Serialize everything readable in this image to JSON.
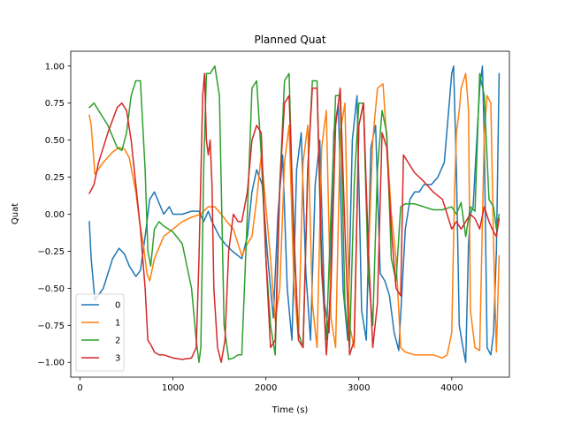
{
  "chart_data": {
    "type": "line",
    "title": "Planned Quat",
    "xlabel": "Time (s)",
    "ylabel": "Quat",
    "xlim": [
      -100,
      4620
    ],
    "ylim": [
      -1.1,
      1.1
    ],
    "xticks": [
      0,
      1000,
      2000,
      3000,
      4000
    ],
    "xtick_labels": [
      "0",
      "1000",
      "2000",
      "3000",
      "4000"
    ],
    "yticks": [
      -1.0,
      -0.75,
      -0.5,
      -0.25,
      0.0,
      0.25,
      0.5,
      0.75,
      1.0
    ],
    "ytick_labels": [
      "−1.00",
      "−0.75",
      "−0.50",
      "−0.25",
      "0.00",
      "0.25",
      "0.50",
      "0.75",
      "1.00"
    ],
    "grid": false,
    "legend_position": "lower-left",
    "series": [
      {
        "name": "0",
        "color": "#1f77b4",
        "x": [
          100,
          120,
          160,
          250,
          350,
          420,
          480,
          530,
          600,
          650,
          700,
          750,
          800,
          900,
          960,
          1000,
          1100,
          1200,
          1280,
          1330,
          1380,
          1420,
          1500,
          1560,
          1640,
          1740,
          1800,
          1850,
          1900,
          1960,
          2020,
          2080,
          2130,
          2180,
          2230,
          2280,
          2330,
          2380,
          2430,
          2480,
          2530,
          2580,
          2630,
          2680,
          2730,
          2780,
          2830,
          2880,
          2930,
          2980,
          3030,
          3080,
          3130,
          3180,
          3230,
          3280,
          3330,
          3380,
          3430,
          3500,
          3550,
          3600,
          3650,
          3700,
          3780,
          3850,
          3920,
          4000,
          4020,
          4050,
          4080,
          4120,
          4150,
          4180,
          4200,
          4230,
          4260,
          4300,
          4330,
          4350,
          4380,
          4420,
          4450,
          4480,
          4510
        ],
        "y": [
          -0.05,
          -0.3,
          -0.58,
          -0.5,
          -0.3,
          -0.23,
          -0.27,
          -0.35,
          -0.42,
          -0.38,
          -0.15,
          0.1,
          0.15,
          0.0,
          0.05,
          0.0,
          0.0,
          0.02,
          0.02,
          -0.05,
          0.02,
          -0.05,
          -0.15,
          -0.2,
          -0.25,
          -0.3,
          -0.15,
          0.15,
          0.3,
          0.2,
          -0.3,
          -0.7,
          0.0,
          0.4,
          -0.5,
          -0.85,
          0.3,
          0.55,
          -0.4,
          -0.85,
          0.2,
          0.5,
          -0.6,
          -0.8,
          0.55,
          0.75,
          -0.5,
          -0.85,
          0.5,
          0.8,
          -0.65,
          -0.85,
          0.45,
          0.6,
          -0.4,
          -0.45,
          -0.55,
          -0.8,
          -0.92,
          -0.1,
          0.1,
          0.15,
          0.15,
          0.2,
          0.2,
          0.25,
          0.35,
          0.95,
          1.0,
          0.3,
          -0.75,
          -0.9,
          -1.0,
          -0.2,
          0.0,
          0.05,
          0.4,
          0.85,
          1.0,
          0.5,
          -0.9,
          -0.95,
          -0.8,
          -0.25,
          0.95
        ]
      },
      {
        "name": "1",
        "color": "#ff7f0e",
        "x": [
          100,
          120,
          160,
          250,
          350,
          420,
          480,
          530,
          600,
          640,
          680,
          720,
          750,
          800,
          900,
          1000,
          1100,
          1200,
          1300,
          1330,
          1380,
          1450,
          1520,
          1580,
          1650,
          1740,
          1800,
          1850,
          1900,
          1950,
          2000,
          2050,
          2100,
          2150,
          2200,
          2250,
          2300,
          2350,
          2400,
          2450,
          2500,
          2550,
          2600,
          2650,
          2700,
          2750,
          2800,
          2850,
          2900,
          2950,
          3000,
          3050,
          3100,
          3150,
          3200,
          3260,
          3300,
          3350,
          3400,
          3450,
          3500,
          3600,
          3700,
          3800,
          3900,
          3950,
          4000,
          4030,
          4050,
          4080,
          4100,
          4150,
          4180,
          4200,
          4250,
          4300,
          4350,
          4380,
          4420,
          4450,
          4480,
          4510
        ],
        "y": [
          0.67,
          0.6,
          0.27,
          0.35,
          0.42,
          0.45,
          0.44,
          0.38,
          0.15,
          -0.05,
          -0.2,
          -0.4,
          -0.45,
          -0.3,
          -0.15,
          -0.1,
          -0.05,
          -0.02,
          0.0,
          0.02,
          0.05,
          0.05,
          0.0,
          -0.05,
          -0.1,
          -0.28,
          -0.2,
          -0.15,
          0.1,
          0.4,
          0.05,
          -0.3,
          -0.72,
          -0.5,
          0.35,
          0.6,
          -0.45,
          -0.85,
          0.35,
          0.6,
          -0.6,
          -0.9,
          0.45,
          0.7,
          -0.7,
          -0.9,
          0.55,
          0.75,
          -0.75,
          -0.9,
          0.6,
          0.75,
          -0.35,
          0.5,
          0.85,
          0.88,
          0.5,
          0.0,
          -0.3,
          -0.9,
          -0.93,
          -0.95,
          -0.95,
          -0.95,
          -0.97,
          -0.95,
          -0.8,
          0.15,
          0.55,
          0.7,
          0.85,
          0.95,
          0.7,
          -0.65,
          -0.9,
          -0.92,
          0.55,
          0.8,
          0.75,
          -0.2,
          -0.93,
          -0.28
        ]
      },
      {
        "name": "2",
        "color": "#2ca02c",
        "x": [
          100,
          150,
          200,
          300,
          400,
          450,
          500,
          550,
          600,
          650,
          700,
          730,
          760,
          800,
          850,
          900,
          1000,
          1100,
          1200,
          1250,
          1280,
          1300,
          1330,
          1360,
          1400,
          1450,
          1500,
          1550,
          1600,
          1650,
          1700,
          1740,
          1800,
          1850,
          1900,
          1950,
          2000,
          2050,
          2100,
          2150,
          2200,
          2250,
          2300,
          2350,
          2400,
          2450,
          2500,
          2550,
          2600,
          2650,
          2700,
          2750,
          2800,
          2850,
          2900,
          2950,
          3000,
          3050,
          3100,
          3150,
          3200,
          3250,
          3300,
          3350,
          3400,
          3450,
          3500,
          3600,
          3700,
          3800,
          3900,
          4000,
          4050,
          4100,
          4150,
          4200,
          4250,
          4300,
          4350,
          4400,
          4450,
          4480,
          4510
        ],
        "y": [
          0.72,
          0.75,
          0.7,
          0.6,
          0.45,
          0.43,
          0.55,
          0.8,
          0.9,
          0.9,
          0.3,
          -0.25,
          -0.35,
          -0.1,
          -0.05,
          -0.08,
          -0.12,
          -0.2,
          -0.5,
          -0.85,
          -1.0,
          -0.9,
          0.3,
          0.95,
          0.95,
          1.0,
          0.8,
          -0.75,
          -0.98,
          -0.97,
          -0.95,
          -0.95,
          0.0,
          0.85,
          0.9,
          0.4,
          -0.3,
          -0.75,
          -0.95,
          0.2,
          0.9,
          0.95,
          -0.2,
          -0.8,
          -0.9,
          0.3,
          0.9,
          0.9,
          -0.4,
          -0.85,
          0.0,
          0.8,
          0.8,
          -0.6,
          -0.9,
          0.2,
          0.75,
          0.75,
          -0.4,
          -0.75,
          0.3,
          0.7,
          0.55,
          -0.3,
          -0.45,
          0.05,
          0.07,
          0.07,
          0.05,
          0.03,
          0.03,
          0.05,
          0.0,
          0.08,
          -0.15,
          0.05,
          0.02,
          0.95,
          0.8,
          0.1,
          0.05,
          -0.1,
          0.0
        ]
      },
      {
        "name": "3",
        "color": "#d62728",
        "x": [
          100,
          150,
          200,
          300,
          400,
          450,
          500,
          550,
          600,
          650,
          700,
          730,
          760,
          800,
          850,
          900,
          1000,
          1100,
          1200,
          1250,
          1280,
          1320,
          1340,
          1360,
          1380,
          1400,
          1420,
          1440,
          1480,
          1520,
          1560,
          1600,
          1650,
          1700,
          1740,
          1800,
          1850,
          1900,
          1950,
          2000,
          2050,
          2100,
          2150,
          2200,
          2250,
          2300,
          2350,
          2400,
          2450,
          2500,
          2550,
          2600,
          2650,
          2700,
          2750,
          2800,
          2850,
          2900,
          2950,
          3000,
          3050,
          3100,
          3150,
          3200,
          3250,
          3300,
          3350,
          3400,
          3450,
          3480,
          3500,
          3600,
          3700,
          3800,
          3900,
          4000,
          4050,
          4100,
          4150,
          4200,
          4250,
          4300,
          4350,
          4400,
          4450,
          4480,
          4510
        ],
        "y": [
          0.14,
          0.2,
          0.35,
          0.55,
          0.72,
          0.75,
          0.7,
          0.5,
          0.2,
          -0.1,
          -0.5,
          -0.85,
          -0.88,
          -0.93,
          -0.95,
          -0.95,
          -0.97,
          -0.98,
          -0.97,
          -0.9,
          -0.3,
          0.8,
          0.95,
          0.5,
          0.4,
          0.5,
          0.2,
          -0.5,
          -0.9,
          -1.0,
          -0.85,
          -0.25,
          0.0,
          -0.05,
          -0.05,
          0.15,
          0.5,
          0.6,
          0.55,
          -0.3,
          -0.9,
          -0.85,
          0.2,
          0.75,
          0.8,
          -0.1,
          -0.85,
          -0.9,
          0.3,
          0.85,
          0.85,
          -0.3,
          -0.95,
          -0.5,
          0.6,
          0.85,
          -0.1,
          -0.95,
          -0.85,
          0.6,
          0.75,
          -0.2,
          -0.9,
          -0.6,
          0.55,
          0.45,
          -0.1,
          -0.5,
          -0.55,
          0.4,
          0.38,
          0.28,
          0.22,
          0.15,
          0.1,
          -0.1,
          -0.05,
          -0.1,
          -0.05,
          0.0,
          -0.03,
          -0.1,
          0.05,
          -0.05,
          -0.12,
          -0.15,
          -0.03
        ]
      }
    ]
  }
}
